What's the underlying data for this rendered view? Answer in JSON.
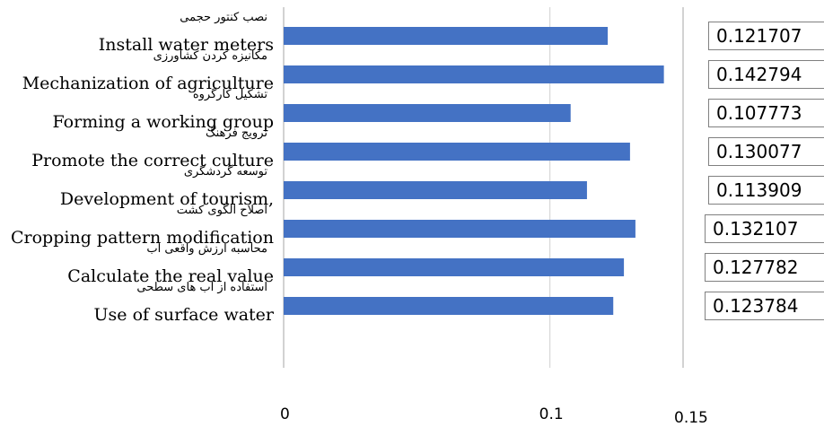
{
  "chart_data": {
    "type": "bar",
    "orientation": "horizontal",
    "categories": [
      "Install water meters",
      "Mechanization of agriculture",
      "Forming a working group",
      "Promote the correct culture",
      "Development of tourism,",
      "Cropping pattern modification",
      "Calculate the real value",
      "Use of surface water"
    ],
    "categories_fa": [
      "نصب کنتور حجمی",
      "مکانیزه کردن کشاورزی",
      "تشکیل کارگروه",
      "ترویج فرهنگ",
      "توسعه گردشگری",
      "اصلاح الگوی کشت",
      "محاسبه ارزش واقعی اب",
      "استفاده از اب های سطحی"
    ],
    "values": [
      0.121707,
      0.142794,
      0.107773,
      0.130077,
      0.113909,
      0.132107,
      0.127782,
      0.123784
    ],
    "value_labels": [
      "0.121707",
      "0.142794",
      "0.107773",
      "0.130077",
      "0.113909",
      "0.132107",
      "0.127782",
      "0.123784"
    ],
    "x_ticks": [
      "0",
      "0.1",
      "0.15"
    ],
    "x_tick_values": [
      0,
      0.1,
      0.15
    ],
    "xlim": [
      0,
      0.15
    ],
    "grid": true,
    "bar_color": "#4472c4",
    "title": "",
    "xlabel": "",
    "ylabel": ""
  }
}
